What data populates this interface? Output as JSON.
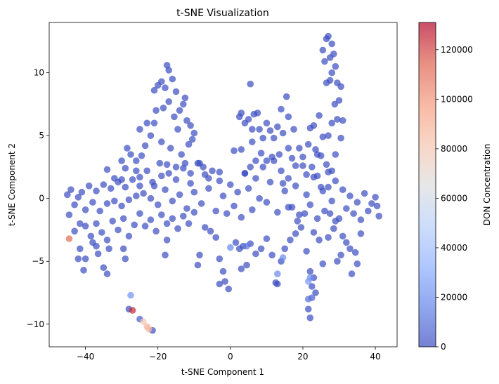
{
  "chart_data": {
    "type": "scatter",
    "title": "t-SNE Visualization",
    "xlabel": "t-SNE Component 1",
    "ylabel": "t-SNE Component 2",
    "xlim": [
      -50,
      46
    ],
    "ylim": [
      -11.8,
      14
    ],
    "xticks": [
      -40,
      -20,
      0,
      20,
      40
    ],
    "yticks": [
      -10,
      -5,
      0,
      5,
      10
    ],
    "colorbar": {
      "label": "DON Concentration",
      "min": 0,
      "max": 131000,
      "ticks": [
        0,
        20000,
        40000,
        60000,
        80000,
        100000,
        120000
      ],
      "colormap": "coolwarm",
      "alpha": 0.7
    },
    "grid": false,
    "points": [
      [
        -45,
        0.3,
        0
      ],
      [
        -44,
        0.7,
        0
      ],
      [
        -43,
        -0.5,
        0
      ],
      [
        -42,
        0.1,
        0
      ],
      [
        -41,
        0.5,
        0
      ],
      [
        -40,
        -0.9,
        0
      ],
      [
        -39,
        1.0,
        0
      ],
      [
        -38,
        -0.3,
        0
      ],
      [
        -37,
        0.6,
        0
      ],
      [
        -36,
        -1.0,
        0
      ],
      [
        -35,
        1.1,
        0
      ],
      [
        -34,
        -0.4,
        0
      ],
      [
        -33,
        0.8,
        0
      ],
      [
        -32,
        -0.2,
        0
      ],
      [
        -31,
        1.3,
        0
      ],
      [
        -30,
        -0.6,
        0
      ],
      [
        -29,
        0.9,
        0
      ],
      [
        -28,
        -0.1,
        0
      ],
      [
        -27,
        1.5,
        0
      ],
      [
        -26,
        0.2,
        0
      ],
      [
        -25,
        1.7,
        0
      ],
      [
        -24,
        0.4,
        0
      ],
      [
        -23,
        2.2,
        0
      ],
      [
        -22,
        0.0,
        0
      ],
      [
        -21,
        1.0,
        0
      ],
      [
        -20,
        -0.5,
        0
      ],
      [
        -19,
        1.8,
        0
      ],
      [
        -18,
        0.7,
        0
      ],
      [
        -17,
        2.0,
        0
      ],
      [
        -16,
        -0.2,
        0
      ],
      [
        -15,
        1.5,
        0
      ],
      [
        -14,
        0.3,
        0
      ],
      [
        -13,
        2.4,
        0
      ],
      [
        -12,
        -0.8,
        0
      ],
      [
        -11,
        1.2,
        0
      ],
      [
        -10,
        0.5,
        0
      ],
      [
        -9,
        2.8,
        0
      ],
      [
        -8,
        -0.4,
        0
      ],
      [
        -7,
        1.9,
        0
      ],
      [
        -6,
        0.8,
        0
      ],
      [
        -5,
        2.2,
        0
      ],
      [
        -4,
        -1.0,
        0
      ],
      [
        -3,
        1.4,
        0
      ],
      [
        -2,
        0.2,
        0
      ],
      [
        -1,
        -1.2,
        0
      ],
      [
        0,
        1.1,
        0
      ],
      [
        1,
        -0.6,
        0
      ],
      [
        2,
        0.5,
        0
      ],
      [
        3,
        -1.5,
        0
      ],
      [
        4,
        2.0,
        0
      ],
      [
        5,
        0.8,
        0
      ],
      [
        6,
        -0.9,
        0
      ],
      [
        7,
        1.6,
        0
      ],
      [
        8,
        0.0,
        0
      ],
      [
        9,
        2.5,
        0
      ],
      [
        10,
        -0.3,
        0
      ],
      [
        11,
        1.3,
        0
      ],
      [
        12,
        3.0,
        0
      ],
      [
        13,
        -1.1,
        0
      ],
      [
        14,
        2.2,
        0
      ],
      [
        15,
        0.6,
        0
      ],
      [
        16,
        -0.7,
        0
      ],
      [
        17,
        3.2,
        0
      ],
      [
        18,
        1.0,
        0
      ],
      [
        19,
        -1.3,
        0
      ],
      [
        20,
        2.6,
        0
      ],
      [
        21,
        0.3,
        0
      ],
      [
        22,
        -0.5,
        0
      ],
      [
        23,
        1.7,
        0
      ],
      [
        24,
        3.5,
        0
      ],
      [
        25,
        0.9,
        0
      ],
      [
        26,
        -1.0,
        0
      ],
      [
        27,
        2.1,
        0
      ],
      [
        28,
        -0.2,
        0
      ],
      [
        29,
        1.4,
        0
      ],
      [
        30,
        -1.6,
        0
      ],
      [
        31,
        0.7,
        0
      ],
      [
        32,
        -0.8,
        0
      ],
      [
        33,
        0.2,
        0
      ],
      [
        34,
        -1.2,
        0
      ],
      [
        35,
        -0.3,
        0
      ],
      [
        36,
        -1.7,
        0
      ],
      [
        37,
        0.4,
        0
      ],
      [
        38,
        -1.0,
        0
      ],
      [
        39,
        -0.4,
        0
      ],
      [
        40,
        0.1,
        0
      ],
      [
        41,
        -1.4,
        0
      ],
      [
        40.5,
        -0.6,
        0
      ],
      [
        -44.5,
        -1.3,
        0
      ],
      [
        -41.5,
        -2.0,
        0
      ],
      [
        -43,
        -2.6,
        0
      ],
      [
        -40,
        -2.2,
        0
      ],
      [
        -38.5,
        -3.0,
        0
      ],
      [
        -37,
        -2.0,
        0
      ],
      [
        -35.5,
        -2.7,
        0
      ],
      [
        -34,
        -3.3,
        0
      ],
      [
        -32.5,
        -1.8,
        0
      ],
      [
        -31,
        -2.5,
        0
      ],
      [
        -29.5,
        -1.6,
        0
      ],
      [
        -28,
        -3.0,
        0
      ],
      [
        -26.5,
        -2.1,
        0
      ],
      [
        -25,
        -1.2,
        0
      ],
      [
        -23.5,
        -2.2,
        0
      ],
      [
        -22,
        -1.7,
        0
      ],
      [
        -20.5,
        -2.6,
        0
      ],
      [
        -19,
        -1.3,
        0
      ],
      [
        -17.5,
        -2.0,
        0
      ],
      [
        -16,
        -1.6,
        0
      ],
      [
        -14.5,
        -2.4,
        0
      ],
      [
        -13,
        -1.4,
        0
      ],
      [
        -11.5,
        -2.0,
        0
      ],
      [
        -10,
        -1.1,
        0
      ],
      [
        -7,
        -2.3,
        0
      ],
      [
        -5.5,
        -2.6,
        0
      ],
      [
        -4,
        -3.1,
        0
      ],
      [
        -41.5,
        -4.0,
        0
      ],
      [
        -40,
        -4.8,
        0
      ],
      [
        -38,
        -3.5,
        0
      ],
      [
        -36.5,
        -4.4,
        0
      ],
      [
        -35,
        -5.5,
        0
      ],
      [
        -33.5,
        -4.0,
        0
      ],
      [
        -37,
        -3.8,
        0
      ],
      [
        -42,
        -4.8,
        0
      ],
      [
        -40.5,
        -5.7,
        0
      ],
      [
        -34,
        -6.0,
        0
      ],
      [
        -29,
        -4.8,
        0
      ],
      [
        -29.5,
        -4.0,
        0
      ],
      [
        -17.5,
        -3.3,
        0
      ],
      [
        -18,
        -4.5,
        0
      ],
      [
        -8.5,
        -4.5,
        0
      ],
      [
        -9,
        -5.3,
        0
      ],
      [
        -3,
        -4.8,
        0
      ],
      [
        -2,
        -5.8,
        0
      ],
      [
        -1.5,
        -6.6,
        0
      ],
      [
        -0.5,
        -7.2,
        0
      ],
      [
        -3,
        -6.8,
        0
      ],
      [
        1.5,
        -3.5,
        0
      ],
      [
        2.5,
        -4.0,
        0
      ],
      [
        3.5,
        -3.8,
        0
      ],
      [
        4.5,
        -5.3,
        0
      ],
      [
        3,
        -5.6,
        0
      ],
      [
        5.5,
        -3.6,
        0
      ],
      [
        7,
        -4.4,
        0
      ],
      [
        8.5,
        -4.0,
        0
      ],
      [
        10,
        -3.2,
        0
      ],
      [
        11.5,
        -4.5,
        0
      ],
      [
        12.5,
        -6.7,
        0
      ],
      [
        13,
        -6.8,
        0
      ],
      [
        14,
        -5.0,
        0
      ],
      [
        15,
        -4.0,
        0
      ],
      [
        16.5,
        -3.3,
        0
      ],
      [
        18,
        -2.8,
        0
      ],
      [
        19.5,
        -2.3,
        0
      ],
      [
        21,
        -4.2,
        0
      ],
      [
        22,
        -5.8,
        0
      ],
      [
        22.5,
        -7.0,
        0
      ],
      [
        23,
        -6.3,
        0
      ],
      [
        23.5,
        -7.5,
        0
      ],
      [
        21.5,
        -8.8,
        0
      ],
      [
        22,
        -9.5,
        0
      ],
      [
        24.5,
        -3.3,
        0
      ],
      [
        25.5,
        -5.2,
        0
      ],
      [
        27,
        -3.1,
        0
      ],
      [
        28.5,
        -2.4,
        0
      ],
      [
        29.5,
        -5.0,
        0
      ],
      [
        30.5,
        -4.5,
        0
      ],
      [
        32,
        -3.5,
        0
      ],
      [
        33,
        -4.0,
        0
      ],
      [
        34.5,
        -4.3,
        0
      ],
      [
        33.5,
        -6.0,
        0
      ],
      [
        35,
        -5.2,
        0
      ],
      [
        36,
        -2.8,
        0
      ],
      [
        31,
        -3.0,
        0
      ],
      [
        29,
        -1.8,
        0
      ],
      [
        27.5,
        -1.2,
        0
      ],
      [
        24,
        -1.6,
        0
      ],
      [
        23,
        -2.7,
        0
      ],
      [
        20.5,
        -1.2,
        0
      ],
      [
        18.5,
        -1.8,
        0
      ],
      [
        17,
        -0.7,
        0
      ],
      [
        -25,
        5.5,
        0
      ],
      [
        -23,
        6.0,
        0
      ],
      [
        -21,
        8.6,
        0
      ],
      [
        -20,
        9.0,
        0
      ],
      [
        -19,
        9.3,
        0
      ],
      [
        -18,
        8.8,
        0
      ],
      [
        -17.5,
        10.6,
        0
      ],
      [
        -17,
        10.2,
        0
      ],
      [
        -16,
        9.5,
        0
      ],
      [
        -15,
        8.5,
        0
      ],
      [
        -14,
        7.0,
        0
      ],
      [
        -13,
        7.5,
        0
      ],
      [
        -12.5,
        8.0,
        0
      ],
      [
        -12,
        6.2,
        0
      ],
      [
        -11,
        5.8,
        0
      ],
      [
        -10.5,
        4.7,
        0
      ],
      [
        -10,
        5.2,
        0
      ],
      [
        -11.5,
        4.3,
        0
      ],
      [
        -14.5,
        5.5,
        0
      ],
      [
        -15.5,
        6.5,
        0
      ],
      [
        -17,
        7.7,
        0
      ],
      [
        -18.5,
        7.2,
        0
      ],
      [
        -20.5,
        7.0,
        0
      ],
      [
        -21,
        6.0,
        0
      ],
      [
        -22,
        5.0,
        0
      ],
      [
        -23.5,
        4.2,
        0
      ],
      [
        -24.5,
        3.4,
        0
      ],
      [
        -26,
        3.0,
        0
      ],
      [
        -27.5,
        3.5,
        0
      ],
      [
        -29,
        2.4,
        0
      ],
      [
        -30,
        3.0,
        0
      ],
      [
        -28.5,
        4.0,
        0
      ],
      [
        -19,
        4.5,
        0
      ],
      [
        -16.5,
        4.0,
        0
      ],
      [
        -13.5,
        3.5,
        0
      ],
      [
        -12.5,
        2.8,
        0
      ],
      [
        -8.5,
        2.8,
        0
      ],
      [
        -7.5,
        2.5,
        0
      ],
      [
        -6,
        1.6,
        0
      ],
      [
        -3,
        2.1,
        0
      ],
      [
        5.5,
        9.1,
        0
      ],
      [
        2.5,
        6.5,
        0
      ],
      [
        3,
        6.8,
        0
      ],
      [
        4,
        6.0,
        0
      ],
      [
        5,
        6.3,
        0
      ],
      [
        6,
        5.5,
        0
      ],
      [
        6.5,
        6.7,
        0
      ],
      [
        7.5,
        6.8,
        0
      ],
      [
        8,
        5.5,
        0
      ],
      [
        9,
        4.8,
        0
      ],
      [
        10,
        6.0,
        0
      ],
      [
        11,
        5.4,
        0
      ],
      [
        12,
        4.8,
        0
      ],
      [
        13,
        5.7,
        0
      ],
      [
        14.5,
        5.2,
        0
      ],
      [
        15.5,
        8.1,
        0
      ],
      [
        14,
        7.1,
        0
      ],
      [
        16,
        6.5,
        0
      ],
      [
        17.5,
        5.5,
        0
      ],
      [
        16,
        4.0,
        0
      ],
      [
        13.5,
        3.5,
        0
      ],
      [
        11.5,
        3.3,
        0
      ],
      [
        10,
        3.0,
        0
      ],
      [
        8.5,
        3.6,
        0
      ],
      [
        7,
        3.0,
        0
      ],
      [
        5.5,
        2.5,
        0
      ],
      [
        4,
        2.0,
        0
      ],
      [
        3,
        3.9,
        0
      ],
      [
        6,
        4.5,
        0
      ],
      [
        1,
        3.8,
        0
      ],
      [
        26.5,
        12.7,
        0
      ],
      [
        27,
        12.9,
        0
      ],
      [
        28,
        12.3,
        0
      ],
      [
        28.5,
        11.5,
        0
      ],
      [
        29,
        10.5,
        0
      ],
      [
        28,
        10.0,
        0
      ],
      [
        27.5,
        9.4,
        0
      ],
      [
        29.5,
        9.2,
        0
      ],
      [
        30.5,
        8.9,
        0
      ],
      [
        26.5,
        9.2,
        0
      ],
      [
        25.5,
        11.8,
        0
      ],
      [
        26,
        10.9,
        0
      ],
      [
        27.5,
        11.2,
        0
      ],
      [
        28.8,
        7.5,
        0
      ],
      [
        29.5,
        6.3,
        0
      ],
      [
        28,
        6.0,
        0
      ],
      [
        27,
        5.0,
        0
      ],
      [
        25.5,
        4.9,
        0
      ],
      [
        24.5,
        6.6,
        0
      ],
      [
        23,
        5.8,
        0
      ],
      [
        22,
        5.6,
        0
      ],
      [
        21.5,
        4.3,
        0
      ],
      [
        23.5,
        3.9,
        0
      ],
      [
        25,
        3.4,
        0
      ],
      [
        26.5,
        2.7,
        0
      ],
      [
        28,
        2.2,
        0
      ],
      [
        29,
        3.5,
        0
      ],
      [
        30.5,
        4.8,
        0
      ],
      [
        31,
        6.2,
        0
      ],
      [
        30,
        7.8,
        0
      ],
      [
        20,
        3.3,
        0
      ],
      [
        19,
        4.0,
        0
      ],
      [
        18,
        2.6,
        0
      ],
      [
        21,
        1.9,
        0
      ],
      [
        22.5,
        2.5,
        0
      ],
      [
        24,
        1.8,
        0
      ],
      [
        25.5,
        0.6,
        0
      ],
      [
        27,
        0.9,
        0
      ],
      [
        16,
        1.6,
        0
      ],
      [
        14.5,
        1.2,
        0
      ],
      [
        -34,
        2.3,
        0
      ],
      [
        -32,
        1.6,
        0
      ],
      [
        -30,
        1.5,
        0
      ],
      [
        -26,
        2.2,
        0
      ],
      [
        -25,
        1.0,
        0
      ],
      [
        -21.5,
        1.3,
        0
      ],
      [
        -19.5,
        2.8,
        0
      ],
      [
        -17.5,
        2.7,
        0
      ],
      [
        -15,
        2.5,
        0
      ],
      [
        -11,
        2.0,
        0
      ],
      [
        -44.5,
        -3.2,
        112000
      ],
      [
        -27,
        -8.9,
        125000
      ],
      [
        -23,
        -10.2,
        88000
      ],
      [
        -22.5,
        -10.4,
        85000
      ],
      [
        -24,
        -9.8,
        80000
      ],
      [
        -27.5,
        -7.7,
        22000
      ],
      [
        -25,
        -9.6,
        4000
      ],
      [
        -21.5,
        -10.5,
        0
      ],
      [
        -28,
        -8.8,
        0
      ],
      [
        14.5,
        -4.7,
        20000
      ],
      [
        13,
        -6.0,
        18000
      ],
      [
        21.5,
        -6.6,
        24000
      ],
      [
        22,
        -6.3,
        20000
      ],
      [
        0,
        -3.9,
        18000
      ],
      [
        4.5,
        -3.8,
        12000
      ],
      [
        21.5,
        -8.0,
        10000
      ],
      [
        22.5,
        -7.9,
        6000
      ]
    ]
  }
}
